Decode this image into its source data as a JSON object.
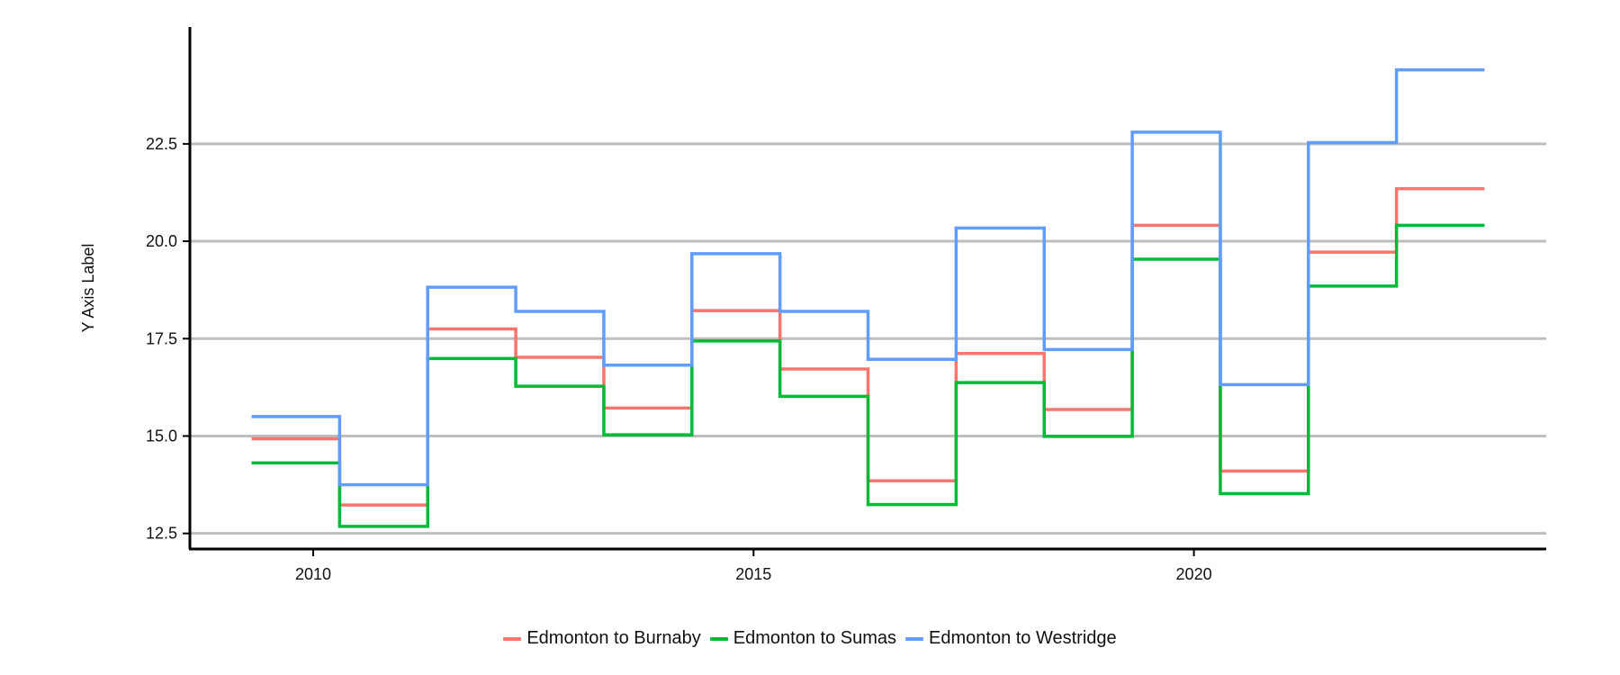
{
  "chart_data": {
    "type": "line",
    "step": true,
    "title": "",
    "xlabel": "",
    "ylabel": "Y Axis Label",
    "xlim": [
      2008.6,
      2024.0
    ],
    "ylim": [
      12.1,
      25.5
    ],
    "x_ticks": [
      2010,
      2015,
      2020
    ],
    "y_ticks": [
      12.5,
      15.0,
      17.5,
      20.0,
      22.5
    ],
    "grid": {
      "horizontal": true,
      "vertical": false
    },
    "legend_position": "bottom",
    "x": [
      2009.3,
      2010.3,
      2011.3,
      2012.3,
      2013.3,
      2014.3,
      2015.3,
      2016.3,
      2017.3,
      2018.3,
      2019.3,
      2020.3,
      2021.3,
      2022.3,
      2023.3
    ],
    "series": [
      {
        "name": "Edmonton to Burnaby",
        "color": "#F8766D",
        "values": [
          14.93,
          13.23,
          17.75,
          17.02,
          15.72,
          18.22,
          16.72,
          13.85,
          17.12,
          15.68,
          20.41,
          14.1,
          19.72,
          21.35,
          21.35
        ]
      },
      {
        "name": "Edmonton to Sumas",
        "color": "#00BA38",
        "values": [
          14.31,
          12.68,
          16.99,
          16.28,
          15.03,
          17.44,
          16.02,
          13.24,
          16.37,
          14.99,
          19.54,
          13.52,
          18.85,
          20.41,
          20.41
        ]
      },
      {
        "name": "Edmonton to Westridge",
        "color": "#619CFF",
        "values": [
          15.5,
          13.75,
          18.82,
          18.2,
          16.82,
          19.68,
          18.2,
          16.97,
          20.34,
          17.22,
          22.8,
          16.32,
          22.53,
          24.4,
          24.4
        ]
      }
    ]
  }
}
